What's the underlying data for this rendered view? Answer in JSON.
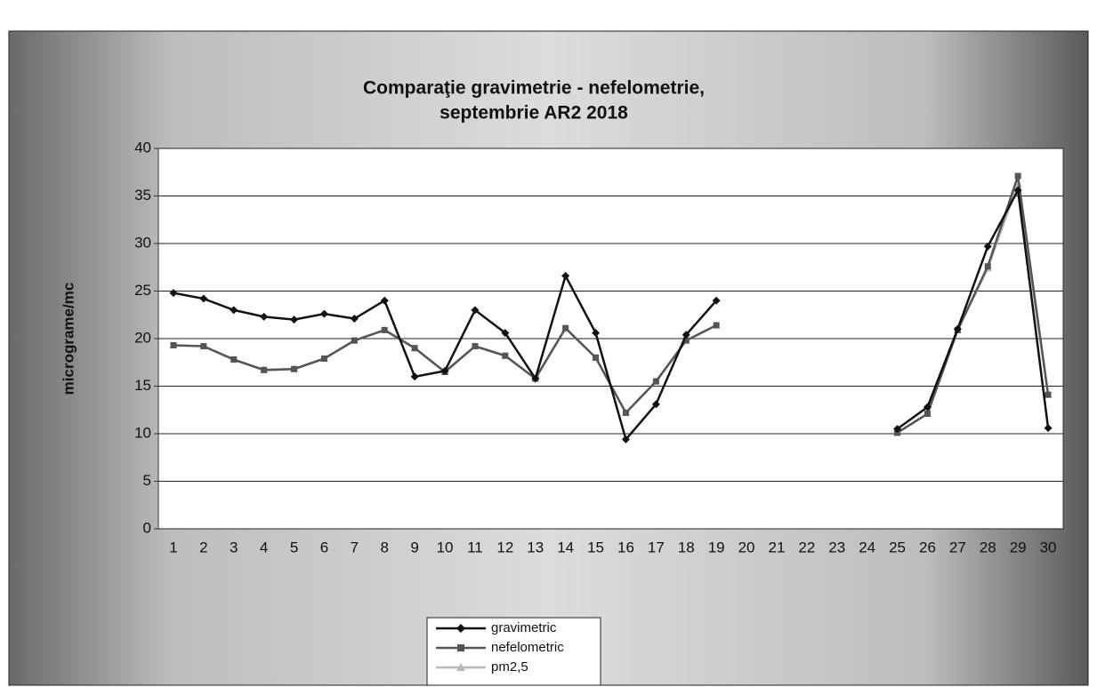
{
  "chart_data": {
    "type": "line",
    "title": "Comparaţie gravimetrie - nefelometrie,",
    "subtitle": "septembrie AR2 2018",
    "y_label": "micrograme/mc",
    "categories": [
      "1",
      "2",
      "3",
      "4",
      "5",
      "6",
      "7",
      "8",
      "9",
      "10",
      "11",
      "12",
      "13",
      "14",
      "15",
      "16",
      "17",
      "18",
      "19",
      "20",
      "21",
      "22",
      "23",
      "24",
      "25",
      "26",
      "27",
      "28",
      "29",
      "30"
    ],
    "series": [
      {
        "name": "gravimetric",
        "color": "#111111",
        "marker": "diamond",
        "values": [
          24.8,
          24.2,
          23,
          22.3,
          22,
          22.6,
          22.1,
          24,
          16,
          16.6,
          23,
          20.6,
          15.8,
          26.6,
          20.6,
          9.4,
          13.1,
          20.4,
          24,
          null,
          null,
          null,
          null,
          null,
          10.5,
          12.8,
          21,
          29.7,
          35.6,
          10.6
        ]
      },
      {
        "name": "nefelometric",
        "color": "#555555",
        "marker": "square",
        "values": [
          19.3,
          19.2,
          17.8,
          16.7,
          16.8,
          17.9,
          19.8,
          20.9,
          19,
          16.5,
          19.2,
          18.2,
          15.8,
          21.1,
          18,
          12.2,
          15.5,
          19.8,
          21.4,
          null,
          null,
          null,
          null,
          null,
          10.1,
          12.1,
          20.9,
          27.6,
          37.1,
          14.1
        ]
      },
      {
        "name": "pm2,5",
        "color": "#b8b8b8",
        "marker": "triangle",
        "values": [
          19.3,
          19.2,
          17.8,
          16.7,
          16.8,
          17.9,
          19.8,
          20.9,
          19,
          16.5,
          19.2,
          18.2,
          15.8,
          21.1,
          18,
          12.2,
          15.5,
          19.8,
          21.4,
          null,
          null,
          null,
          null,
          null,
          10.1,
          12.1,
          20.9,
          27.4,
          36.3,
          14.1
        ]
      }
    ],
    "ylim": [
      0,
      40
    ],
    "yticks": [
      0,
      5,
      10,
      15,
      20,
      25,
      30,
      35,
      40
    ],
    "grid": true,
    "legend": "bottom"
  }
}
